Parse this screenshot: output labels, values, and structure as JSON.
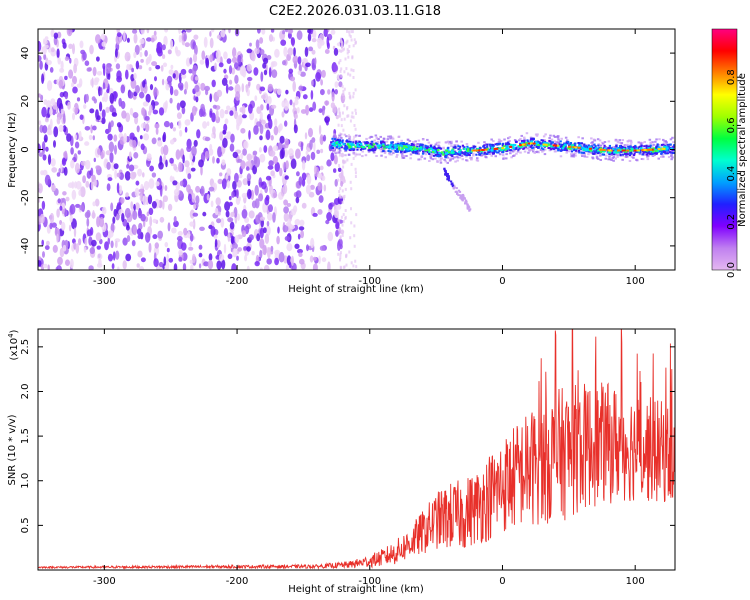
{
  "title": "C2E2.2026.031.03.11.G18",
  "chart_data": [
    {
      "type": "heatmap",
      "xlabel": "Height of straight line (km)",
      "ylabel": "Frequency (Hz)",
      "xlim": [
        -350,
        130
      ],
      "ylim": [
        -50,
        50
      ],
      "xticks": [
        "-300",
        "-200",
        "-100",
        "0",
        "100"
      ],
      "xtick_values": [
        -300,
        -200,
        -100,
        0,
        100
      ],
      "yticks": [
        "-40",
        "-20",
        "0",
        "20",
        "40"
      ],
      "ytick_values": [
        -40,
        -20,
        0,
        20,
        40
      ],
      "noise_region_x": [
        -350,
        -120
      ],
      "ridge": {
        "x": [
          -130,
          -115,
          -100,
          -85,
          -70,
          -55,
          -45,
          -35,
          -20,
          0,
          20,
          40,
          60,
          80,
          100,
          130
        ],
        "y": [
          3,
          2,
          2,
          1.5,
          1,
          0,
          -1,
          0,
          0,
          1,
          3,
          2,
          1,
          0,
          0,
          1
        ]
      },
      "branch": {
        "x": [
          -45,
          -40,
          -35,
          -30,
          -25
        ],
        "y": [
          -8,
          -13,
          -17,
          -20,
          -25
        ]
      },
      "colorbar": {
        "label": "Normalized spectral amplitude",
        "range": [
          0,
          1
        ],
        "ticks": [
          "0.0",
          "0.2",
          "0.4",
          "0.6",
          "0.8"
        ],
        "tick_values": [
          0,
          0.2,
          0.4,
          0.6,
          0.8
        ],
        "colors": [
          "#e4b8f0",
          "#c080f0",
          "#8000ff",
          "#2020ff",
          "#00a0ff",
          "#00ffd0",
          "#00ff40",
          "#a0ff00",
          "#ffff00",
          "#ff8000",
          "#ff0000",
          "#ff0080"
        ]
      }
    },
    {
      "type": "line",
      "xlabel": "Height of straight line (km)",
      "ylabel": "SNR (10 * v/v)",
      "scale_note_prefix": "(x10",
      "scale_note_exp": "4",
      "scale_note_suffix": ")",
      "xlim": [
        -350,
        130
      ],
      "ylim": [
        0,
        2.7
      ],
      "xticks": [
        "-300",
        "-200",
        "-100",
        "0",
        "100"
      ],
      "xtick_values": [
        -300,
        -200,
        -100,
        0,
        100
      ],
      "yticks": [
        "0.5",
        "1.0",
        "1.5",
        "2.0",
        "2.5"
      ],
      "ytick_values": [
        0.5,
        1.0,
        1.5,
        2.0,
        2.5
      ],
      "series": [
        {
          "name": "SNR",
          "color": "#e8302a",
          "envelope_x": [
            -350,
            -140,
            -115,
            -100,
            -90,
            -80,
            -70,
            -60,
            -50,
            -40,
            -30,
            -20,
            -10,
            0,
            10,
            20,
            30,
            40,
            50,
            60,
            70,
            80,
            90,
            100,
            110,
            120,
            130
          ],
          "envelope_y": [
            0.03,
            0.04,
            0.06,
            0.1,
            0.14,
            0.2,
            0.3,
            0.42,
            0.55,
            0.6,
            0.62,
            0.7,
            0.82,
            0.95,
            1.05,
            1.15,
            1.2,
            1.28,
            1.32,
            1.38,
            1.4,
            1.42,
            1.4,
            1.38,
            1.35,
            1.32,
            1.3
          ],
          "spread_y": [
            0.01,
            0.02,
            0.04,
            0.07,
            0.1,
            0.14,
            0.18,
            0.25,
            0.32,
            0.38,
            0.4,
            0.42,
            0.5,
            0.55,
            0.6,
            0.65,
            0.7,
            0.75,
            0.75,
            0.72,
            0.7,
            0.68,
            0.65,
            0.62,
            0.6,
            0.58,
            0.55
          ]
        }
      ]
    }
  ]
}
